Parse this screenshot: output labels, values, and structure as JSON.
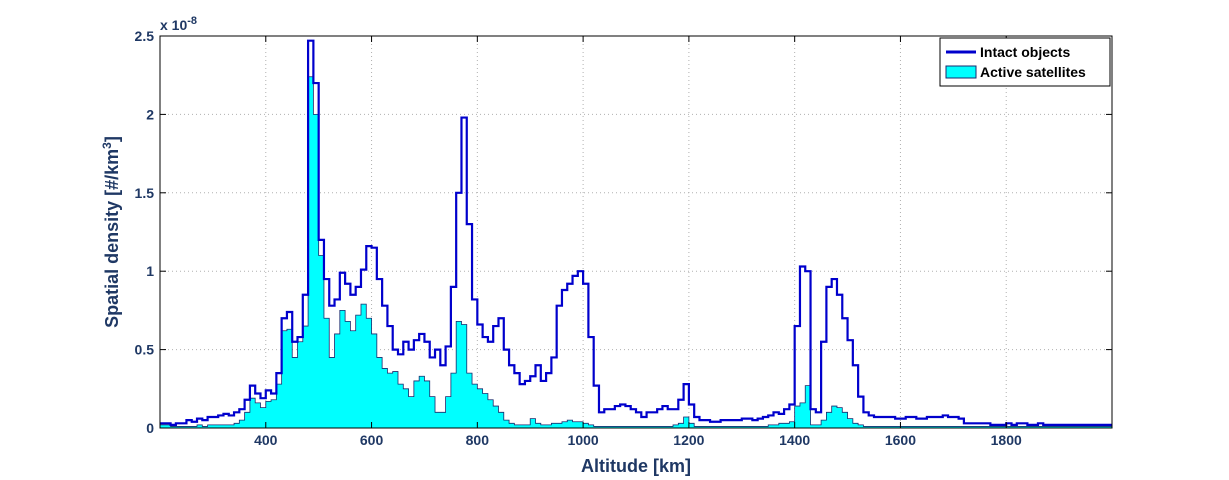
{
  "chart_data": {
    "type": "line",
    "xlabel": "Altitude [km]",
    "ylabel": "Spatial density [#/km",
    "ylabel_sup": "3",
    "ylabel_end": "]",
    "exponent_base": "x 10",
    "exponent_power": "-8",
    "xlim": [
      200,
      2000
    ],
    "ylim": [
      0,
      2.5
    ],
    "xticks": [
      400,
      600,
      800,
      1000,
      1200,
      1400,
      1600,
      1800
    ],
    "yticks": [
      0,
      0.5,
      1,
      1.5,
      2,
      2.5
    ],
    "ytick_labels": [
      "0",
      "0.5",
      "1",
      "1.5",
      "2",
      "2.5"
    ],
    "grid": true,
    "legend_position": "top-right",
    "bin_width_km": 10,
    "series": [
      {
        "name": "Intact objects",
        "style": "step-line",
        "color": "#0000cc",
        "x": [
          200,
          210,
          220,
          230,
          240,
          250,
          260,
          270,
          280,
          290,
          300,
          310,
          320,
          330,
          340,
          350,
          360,
          370,
          380,
          390,
          400,
          410,
          420,
          430,
          440,
          450,
          460,
          470,
          480,
          490,
          500,
          510,
          520,
          530,
          540,
          550,
          560,
          570,
          580,
          590,
          600,
          610,
          620,
          630,
          640,
          650,
          660,
          670,
          680,
          690,
          700,
          710,
          720,
          730,
          740,
          750,
          760,
          770,
          780,
          790,
          800,
          810,
          820,
          830,
          840,
          850,
          860,
          870,
          880,
          890,
          900,
          910,
          920,
          930,
          940,
          950,
          960,
          970,
          980,
          990,
          1000,
          1010,
          1020,
          1030,
          1040,
          1050,
          1060,
          1070,
          1080,
          1090,
          1100,
          1110,
          1120,
          1130,
          1140,
          1150,
          1160,
          1170,
          1180,
          1190,
          1200,
          1210,
          1220,
          1230,
          1240,
          1250,
          1260,
          1270,
          1280,
          1290,
          1300,
          1310,
          1320,
          1330,
          1340,
          1350,
          1360,
          1370,
          1380,
          1390,
          1400,
          1410,
          1420,
          1430,
          1440,
          1450,
          1460,
          1470,
          1480,
          1490,
          1500,
          1510,
          1520,
          1530,
          1540,
          1550,
          1560,
          1570,
          1580,
          1590,
          1600,
          1610,
          1620,
          1630,
          1640,
          1650,
          1660,
          1670,
          1680,
          1690,
          1700,
          1710,
          1720,
          1730,
          1740,
          1750,
          1760,
          1770,
          1780,
          1790,
          1800,
          1810,
          1820,
          1830,
          1840,
          1850,
          1860,
          1870,
          1880,
          1890,
          1900,
          1910,
          1920,
          1930,
          1940,
          1950,
          1960,
          1970,
          1980,
          1990
        ],
        "values": [
          0.03,
          0.03,
          0.02,
          0.03,
          0.03,
          0.05,
          0.04,
          0.06,
          0.05,
          0.07,
          0.07,
          0.08,
          0.09,
          0.08,
          0.1,
          0.12,
          0.18,
          0.27,
          0.22,
          0.19,
          0.24,
          0.22,
          0.35,
          0.7,
          0.74,
          0.55,
          0.58,
          0.85,
          2.47,
          2.2,
          1.2,
          0.95,
          0.78,
          0.82,
          0.99,
          0.92,
          0.85,
          0.9,
          1.01,
          1.16,
          1.15,
          0.95,
          0.78,
          0.65,
          0.5,
          0.47,
          0.55,
          0.5,
          0.56,
          0.6,
          0.55,
          0.45,
          0.5,
          0.4,
          0.52,
          0.9,
          1.5,
          1.98,
          1.3,
          0.82,
          0.66,
          0.58,
          0.55,
          0.65,
          0.7,
          0.5,
          0.4,
          0.35,
          0.28,
          0.3,
          0.33,
          0.4,
          0.3,
          0.35,
          0.45,
          0.78,
          0.88,
          0.92,
          0.97,
          1.0,
          0.92,
          0.58,
          0.27,
          0.1,
          0.12,
          0.12,
          0.14,
          0.15,
          0.14,
          0.12,
          0.1,
          0.07,
          0.1,
          0.1,
          0.12,
          0.14,
          0.12,
          0.12,
          0.18,
          0.28,
          0.15,
          0.07,
          0.05,
          0.05,
          0.04,
          0.04,
          0.05,
          0.05,
          0.05,
          0.05,
          0.06,
          0.06,
          0.05,
          0.06,
          0.07,
          0.08,
          0.1,
          0.09,
          0.12,
          0.15,
          0.65,
          1.03,
          1.0,
          0.12,
          0.1,
          0.55,
          0.9,
          0.95,
          0.85,
          0.7,
          0.56,
          0.4,
          0.2,
          0.1,
          0.08,
          0.07,
          0.07,
          0.07,
          0.07,
          0.06,
          0.06,
          0.07,
          0.07,
          0.06,
          0.06,
          0.07,
          0.07,
          0.07,
          0.08,
          0.07,
          0.07,
          0.06,
          0.03,
          0.03,
          0.03,
          0.03,
          0.03,
          0.02,
          0.02,
          0.02,
          0.03,
          0.02,
          0.03,
          0.03,
          0.02,
          0.02,
          0.03,
          0.02,
          0.02,
          0.02,
          0.02,
          0.02,
          0.02,
          0.02,
          0.02,
          0.02,
          0.02,
          0.02,
          0.02,
          0.02
        ]
      },
      {
        "name": "Active satellites",
        "style": "step-area",
        "color": "#00ffff",
        "edge_color": "#1a2a6c",
        "x": [
          200,
          210,
          220,
          230,
          240,
          250,
          260,
          270,
          280,
          290,
          300,
          310,
          320,
          330,
          340,
          350,
          360,
          370,
          380,
          390,
          400,
          410,
          420,
          430,
          440,
          450,
          460,
          470,
          480,
          490,
          500,
          510,
          520,
          530,
          540,
          550,
          560,
          570,
          580,
          590,
          600,
          610,
          620,
          630,
          640,
          650,
          660,
          670,
          680,
          690,
          700,
          710,
          720,
          730,
          740,
          750,
          760,
          770,
          780,
          790,
          800,
          810,
          820,
          830,
          840,
          850,
          860,
          870,
          880,
          890,
          900,
          910,
          920,
          930,
          940,
          950,
          960,
          970,
          980,
          990,
          1000,
          1010,
          1020,
          1030,
          1040,
          1050,
          1060,
          1070,
          1080,
          1090,
          1100,
          1110,
          1120,
          1130,
          1140,
          1150,
          1160,
          1170,
          1180,
          1190,
          1200,
          1210,
          1220,
          1230,
          1240,
          1250,
          1260,
          1270,
          1280,
          1290,
          1300,
          1310,
          1320,
          1330,
          1340,
          1350,
          1360,
          1370,
          1380,
          1390,
          1400,
          1410,
          1420,
          1430,
          1440,
          1450,
          1460,
          1470,
          1480,
          1490,
          1500,
          1510,
          1520,
          1530,
          1540,
          1550,
          1560,
          1570,
          1580,
          1590,
          1600,
          1610,
          1620,
          1630,
          1640,
          1650,
          1660,
          1670,
          1680,
          1690,
          1700,
          1710,
          1720,
          1730,
          1740,
          1750,
          1760,
          1770,
          1780,
          1790,
          1800,
          1810,
          1820,
          1830,
          1840,
          1850,
          1860,
          1870,
          1880,
          1890,
          1900,
          1910,
          1920,
          1930,
          1940,
          1950,
          1960,
          1970,
          1980,
          1990
        ],
        "values": [
          0.02,
          0.02,
          0.01,
          0.01,
          0.01,
          0.01,
          0.01,
          0.02,
          0.01,
          0.02,
          0.02,
          0.02,
          0.02,
          0.02,
          0.03,
          0.05,
          0.1,
          0.19,
          0.16,
          0.13,
          0.17,
          0.18,
          0.28,
          0.62,
          0.63,
          0.45,
          0.55,
          0.65,
          2.24,
          2.0,
          1.1,
          0.7,
          0.45,
          0.6,
          0.75,
          0.68,
          0.62,
          0.72,
          0.79,
          0.7,
          0.6,
          0.45,
          0.38,
          0.35,
          0.36,
          0.28,
          0.25,
          0.2,
          0.3,
          0.33,
          0.3,
          0.2,
          0.1,
          0.1,
          0.2,
          0.35,
          0.68,
          0.66,
          0.35,
          0.28,
          0.25,
          0.22,
          0.18,
          0.14,
          0.1,
          0.05,
          0.03,
          0.02,
          0.02,
          0.02,
          0.06,
          0.03,
          0.02,
          0.02,
          0.03,
          0.03,
          0.04,
          0.05,
          0.04,
          0.04,
          0.03,
          0.02,
          0.01,
          0.01,
          0.01,
          0.01,
          0.01,
          0.01,
          0.01,
          0.01,
          0.01,
          0.01,
          0.01,
          0.01,
          0.01,
          0.01,
          0.01,
          0.02,
          0.03,
          0.07,
          0.03,
          0.01,
          0.01,
          0.01,
          0.01,
          0.01,
          0.01,
          0.01,
          0.01,
          0.01,
          0.01,
          0.01,
          0.01,
          0.01,
          0.01,
          0.02,
          0.02,
          0.03,
          0.03,
          0.04,
          0.14,
          0.16,
          0.27,
          0.02,
          0.02,
          0.05,
          0.1,
          0.14,
          0.13,
          0.1,
          0.06,
          0.03,
          0.02,
          0.01,
          0.01,
          0.01,
          0.01,
          0.01,
          0.01,
          0.01,
          0.01,
          0.01,
          0.01,
          0.01,
          0.01,
          0.01,
          0.01,
          0.01,
          0.01,
          0.01,
          0.01,
          0.01,
          0.01,
          0.01,
          0.01,
          0.01,
          0.01,
          0.01,
          0.01,
          0.01,
          0.01,
          0.01,
          0.01,
          0.01,
          0.01,
          0.01,
          0.01,
          0.01,
          0.01,
          0.01,
          0.01,
          0.01,
          0.01,
          0.01,
          0.01,
          0.01,
          0.01,
          0.01,
          0.01,
          0.01
        ]
      }
    ]
  }
}
